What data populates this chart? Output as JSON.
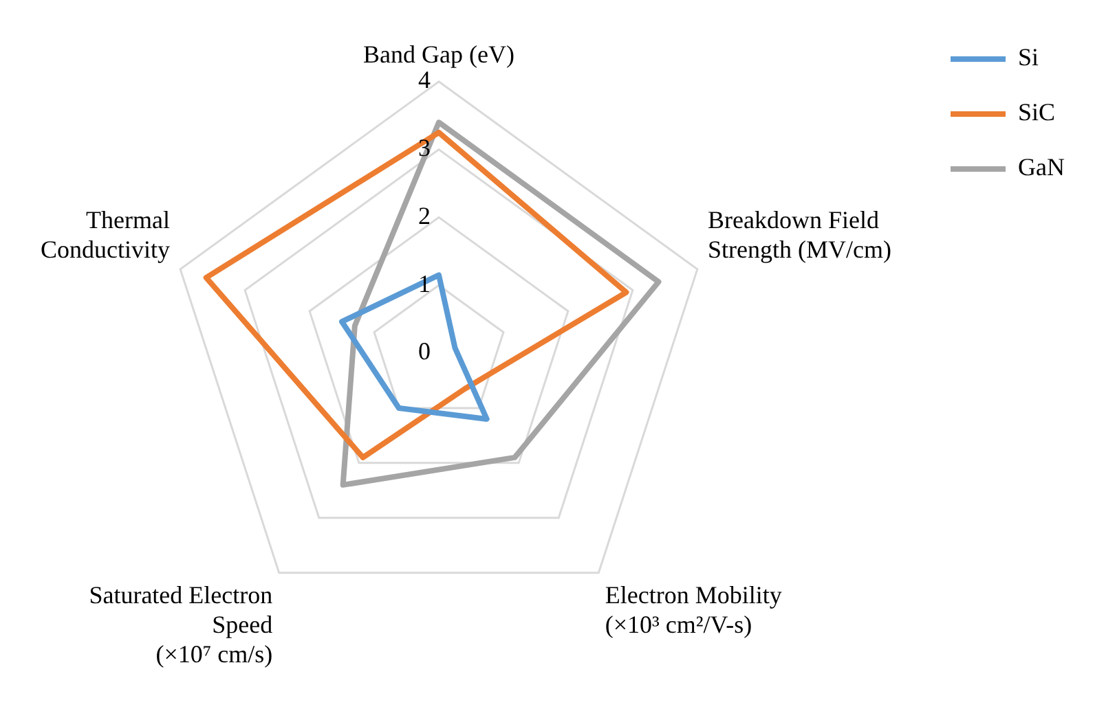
{
  "chart_data": {
    "type": "radar",
    "categories": [
      "Band Gap (eV)",
      "Breakdown Field\nStrength (MV/cm)",
      "Electron Mobility\n(×10³ cm²/V-s)",
      "Saturated Electron\nSpeed\n(×10⁷ cm/s)",
      "Thermal\nConductivity"
    ],
    "series": [
      {
        "name": "Si",
        "color": "#5b9bd5",
        "values": [
          1.15,
          0.25,
          1.2,
          1.0,
          1.5
        ]
      },
      {
        "name": "SiC",
        "color": "#ed7d31",
        "values": [
          3.25,
          2.9,
          0.65,
          1.9,
          3.6
        ]
      },
      {
        "name": "GaN",
        "color": "#a5a5a5",
        "values": [
          3.4,
          3.4,
          1.9,
          2.4,
          1.3
        ]
      }
    ],
    "ylim": [
      0,
      4
    ],
    "yticks": [
      0,
      1,
      2,
      3,
      4
    ],
    "grid": true,
    "legend": "top right",
    "marker": "none"
  }
}
